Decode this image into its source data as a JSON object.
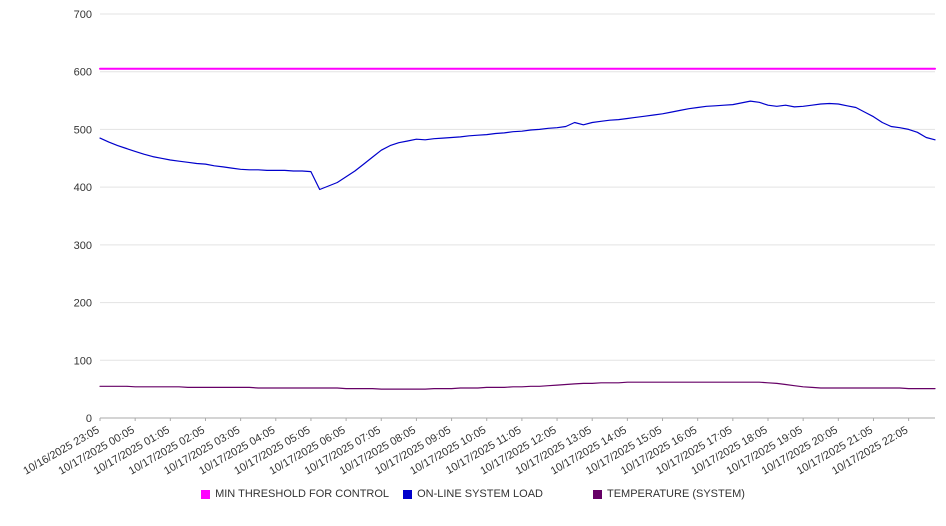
{
  "chart_data": {
    "type": "line",
    "title": "",
    "xlabel": "",
    "ylabel": "",
    "ylim": [
      0,
      700
    ],
    "y_ticks": [
      0,
      100,
      200,
      300,
      400,
      500,
      600,
      700
    ],
    "grid": "horizontal",
    "legend_position": "bottom",
    "label_step": 4,
    "x_tick_labels": [
      "10/16/2025 23:05",
      "10/17/2025 00:05",
      "10/17/2025 01:05",
      "10/17/2025 02:05",
      "10/17/2025 03:05",
      "10/17/2025 04:05",
      "10/17/2025 05:05",
      "10/17/2025 06:05",
      "10/17/2025 07:05",
      "10/17/2025 08:05",
      "10/17/2025 09:05",
      "10/17/2025 10:05",
      "10/17/2025 11:05",
      "10/17/2025 12:05",
      "10/17/2025 13:05",
      "10/17/2025 14:05",
      "10/17/2025 15:05",
      "10/17/2025 16:05",
      "10/17/2025 17:05",
      "10/17/2025 18:05",
      "10/17/2025 19:05",
      "10/17/2025 20:05",
      "10/17/2025 21:05",
      "10/17/2025 22:05"
    ],
    "series": [
      {
        "name": "MIN THRESHOLD FOR CONTROL",
        "color": "#ff00ff",
        "width": 2,
        "values": [
          605,
          605
        ]
      },
      {
        "name": "ON-LINE SYSTEM LOAD",
        "color": "#0000cc",
        "width": 1.2,
        "values": [
          485,
          478,
          472,
          467,
          462,
          457,
          453,
          450,
          447,
          445,
          443,
          441,
          440,
          437,
          435,
          433,
          431,
          430,
          430,
          429,
          429,
          429,
          428,
          428,
          427,
          396,
          402,
          408,
          418,
          428,
          440,
          452,
          464,
          472,
          477,
          480,
          483,
          482,
          484,
          485,
          486,
          487,
          489,
          490,
          491,
          493,
          494,
          496,
          497,
          499,
          500,
          502,
          503,
          505,
          512,
          508,
          512,
          514,
          516,
          517,
          519,
          521,
          523,
          525,
          527,
          530,
          533,
          536,
          538,
          540,
          541,
          542,
          543,
          546,
          549,
          547,
          542,
          540,
          542,
          539,
          540,
          542,
          544,
          545,
          544,
          541,
          538,
          530,
          522,
          512,
          505,
          503,
          500,
          495,
          486,
          482
        ]
      },
      {
        "name": "TEMPERATURE (SYSTEM)",
        "color": "#660066",
        "width": 1.2,
        "values": [
          55,
          55,
          55,
          55,
          54,
          54,
          54,
          54,
          54,
          54,
          53,
          53,
          53,
          53,
          53,
          53,
          53,
          53,
          52,
          52,
          52,
          52,
          52,
          52,
          52,
          52,
          52,
          52,
          51,
          51,
          51,
          51,
          50,
          50,
          50,
          50,
          50,
          50,
          51,
          51,
          51,
          52,
          52,
          52,
          53,
          53,
          53,
          54,
          54,
          55,
          55,
          56,
          57,
          58,
          59,
          60,
          60,
          61,
          61,
          61,
          62,
          62,
          62,
          62,
          62,
          62,
          62,
          62,
          62,
          62,
          62,
          62,
          62,
          62,
          62,
          62,
          61,
          60,
          58,
          56,
          54,
          53,
          52,
          52,
          52,
          52,
          52,
          52,
          52,
          52,
          52,
          52,
          51,
          51,
          51,
          51
        ]
      }
    ],
    "axis_color": "#aaaaaa",
    "gridline_color": "#e3e3e3",
    "tick_label_color": "#333333"
  }
}
